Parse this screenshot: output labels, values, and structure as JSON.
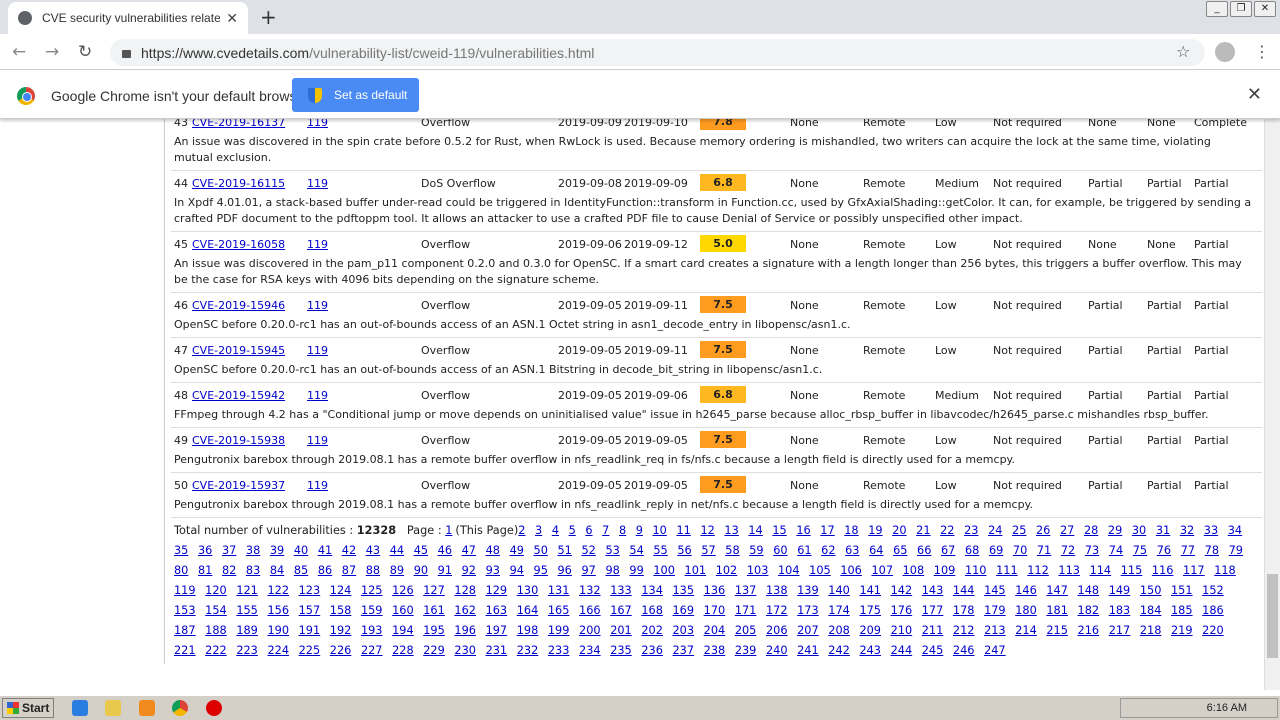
{
  "browser": {
    "tab_title": "CVE security vulnerabilities related to",
    "url_host": "https://www.cvedetails.com",
    "url_path": "/vulnerability-list/cweid-119/vulnerabilities.html"
  },
  "infobar": {
    "message": "Google Chrome isn't your default browser",
    "button": "Set as default"
  },
  "rows": [
    {
      "n": "43",
      "cve": "CVE-2019-16137",
      "cwe": "119",
      "type": "Overflow",
      "pub": "2019-09-09",
      "upd": "2019-09-10",
      "score": "7.8",
      "score_color": "#ff9c20",
      "gained": "None",
      "access": "Remote",
      "complexity": "Low",
      "auth": "Not required",
      "conf": "None",
      "integ": "None",
      "avail": "Complete",
      "desc": "An issue was discovered in the spin crate before 0.5.2 for Rust, when RwLock is used. Because memory ordering is mishandled, two writers can acquire the lock at the same time, violating mutual exclusion."
    },
    {
      "n": "44",
      "cve": "CVE-2019-16115",
      "cwe": "119",
      "type": "DoS Overflow",
      "pub": "2019-09-08",
      "upd": "2019-09-09",
      "score": "6.8",
      "score_color": "#ffb820",
      "gained": "None",
      "access": "Remote",
      "complexity": "Medium",
      "auth": "Not required",
      "conf": "Partial",
      "integ": "Partial",
      "avail": "Partial",
      "desc": "In Xpdf 4.01.01, a stack-based buffer under-read could be triggered in IdentityFunction::transform in Function.cc, used by GfxAxialShading::getColor. It can, for example, be triggered by sending a crafted PDF document to the pdftoppm tool. It allows an attacker to use a crafted PDF file to cause Denial of Service or possibly unspecified other impact."
    },
    {
      "n": "45",
      "cve": "CVE-2019-16058",
      "cwe": "119",
      "type": "Overflow",
      "pub": "2019-09-06",
      "upd": "2019-09-12",
      "score": "5.0",
      "score_color": "#ffd800",
      "gained": "None",
      "access": "Remote",
      "complexity": "Low",
      "auth": "Not required",
      "conf": "None",
      "integ": "None",
      "avail": "Partial",
      "desc": "An issue was discovered in the pam_p11 component 0.2.0 and 0.3.0 for OpenSC. If a smart card creates a signature with a length longer than 256 bytes, this triggers a buffer overflow. This may be the case for RSA keys with 4096 bits depending on the signature scheme."
    },
    {
      "n": "46",
      "cve": "CVE-2019-15946",
      "cwe": "119",
      "type": "Overflow",
      "pub": "2019-09-05",
      "upd": "2019-09-11",
      "score": "7.5",
      "score_color": "#ff9c20",
      "gained": "None",
      "access": "Remote",
      "complexity": "Low",
      "auth": "Not required",
      "conf": "Partial",
      "integ": "Partial",
      "avail": "Partial",
      "desc": "OpenSC before 0.20.0-rc1 has an out-of-bounds access of an ASN.1 Octet string in asn1_decode_entry in libopensc/asn1.c."
    },
    {
      "n": "47",
      "cve": "CVE-2019-15945",
      "cwe": "119",
      "type": "Overflow",
      "pub": "2019-09-05",
      "upd": "2019-09-11",
      "score": "7.5",
      "score_color": "#ff9c20",
      "gained": "None",
      "access": "Remote",
      "complexity": "Low",
      "auth": "Not required",
      "conf": "Partial",
      "integ": "Partial",
      "avail": "Partial",
      "desc": "OpenSC before 0.20.0-rc1 has an out-of-bounds access of an ASN.1 Bitstring in decode_bit_string in libopensc/asn1.c."
    },
    {
      "n": "48",
      "cve": "CVE-2019-15942",
      "cwe": "119",
      "type": "Overflow",
      "pub": "2019-09-05",
      "upd": "2019-09-06",
      "score": "6.8",
      "score_color": "#ffb820",
      "gained": "None",
      "access": "Remote",
      "complexity": "Medium",
      "auth": "Not required",
      "conf": "Partial",
      "integ": "Partial",
      "avail": "Partial",
      "desc": "FFmpeg through 4.2 has a \"Conditional jump or move depends on uninitialised value\" issue in h2645_parse because alloc_rbsp_buffer in libavcodec/h2645_parse.c mishandles rbsp_buffer."
    },
    {
      "n": "49",
      "cve": "CVE-2019-15938",
      "cwe": "119",
      "type": "Overflow",
      "pub": "2019-09-05",
      "upd": "2019-09-05",
      "score": "7.5",
      "score_color": "#ff9c20",
      "gained": "None",
      "access": "Remote",
      "complexity": "Low",
      "auth": "Not required",
      "conf": "Partial",
      "integ": "Partial",
      "avail": "Partial",
      "desc": "Pengutronix barebox through 2019.08.1 has a remote buffer overflow in nfs_readlink_req in fs/nfs.c because a length field is directly used for a memcpy."
    },
    {
      "n": "50",
      "cve": "CVE-2019-15937",
      "cwe": "119",
      "type": "Overflow",
      "pub": "2019-09-05",
      "upd": "2019-09-05",
      "score": "7.5",
      "score_color": "#ff9c20",
      "gained": "None",
      "access": "Remote",
      "complexity": "Low",
      "auth": "Not required",
      "conf": "Partial",
      "integ": "Partial",
      "avail": "Partial",
      "desc": "Pengutronix barebox through 2019.08.1 has a remote buffer overflow in nfs_readlink_reply in net/nfs.c because a length field is directly used for a memcpy."
    }
  ],
  "pagination": {
    "total_label": "Total number of vulnerabilities :",
    "total": "12328",
    "page_label": "Page :",
    "current": "1",
    "current_note": "(This Page)",
    "first_page": 2,
    "last_page": 247
  },
  "taskbar": {
    "start": "Start",
    "clock": "6:16 AM"
  }
}
